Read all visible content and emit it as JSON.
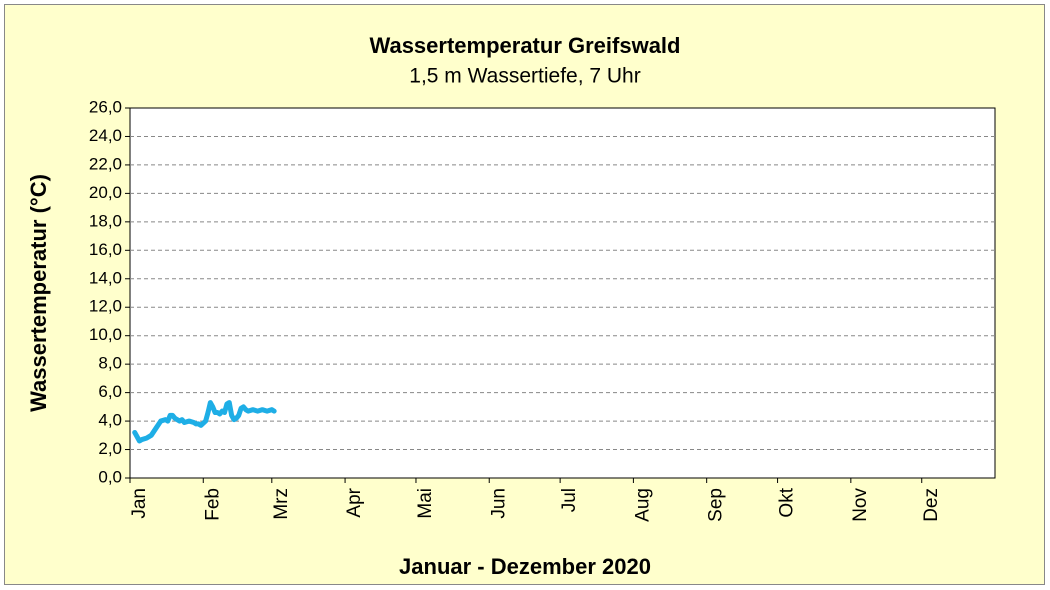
{
  "chart_data": {
    "type": "line",
    "title": "Wassertemperatur Greifswald",
    "subtitle": "1,5 m Wassertiefe, 7 Uhr",
    "ylabel": "Wassertemperatur (°C)",
    "xlabel": "Januar - Dezember 2020",
    "xlim": [
      0,
      366
    ],
    "xticks": [
      {
        "value": 0,
        "label": "Jan"
      },
      {
        "value": 31,
        "label": "Feb"
      },
      {
        "value": 60,
        "label": "Mrz"
      },
      {
        "value": 91,
        "label": "Apr"
      },
      {
        "value": 121,
        "label": "Mai"
      },
      {
        "value": 152,
        "label": "Jun"
      },
      {
        "value": 182,
        "label": "Jul"
      },
      {
        "value": 213,
        "label": "Aug"
      },
      {
        "value": 244,
        "label": "Sep"
      },
      {
        "value": 274,
        "label": "Okt"
      },
      {
        "value": 305,
        "label": "Nov"
      },
      {
        "value": 335,
        "label": "Dez"
      }
    ],
    "ylim": [
      0,
      26
    ],
    "yticks": [
      {
        "value": 0,
        "label": "0,0"
      },
      {
        "value": 2,
        "label": "2,0"
      },
      {
        "value": 4,
        "label": "4,0"
      },
      {
        "value": 6,
        "label": "6,0"
      },
      {
        "value": 8,
        "label": "8,0"
      },
      {
        "value": 10,
        "label": "10,0"
      },
      {
        "value": 12,
        "label": "12,0"
      },
      {
        "value": 14,
        "label": "14,0"
      },
      {
        "value": 16,
        "label": "16,0"
      },
      {
        "value": 18,
        "label": "18,0"
      },
      {
        "value": 20,
        "label": "20,0"
      },
      {
        "value": 22,
        "label": "22,0"
      },
      {
        "value": 24,
        "label": "24,0"
      },
      {
        "value": 26,
        "label": "26,0"
      }
    ],
    "grid": true,
    "series": [
      {
        "color": "#1eaee6",
        "x": [
          2,
          4,
          5,
          7,
          9,
          11,
          13,
          15,
          16,
          17,
          18,
          19,
          21,
          22,
          23,
          25,
          27,
          28,
          29,
          30,
          32,
          33,
          34,
          35,
          36,
          37,
          38,
          39,
          40,
          41,
          42,
          43,
          44,
          45,
          46,
          47,
          48,
          49,
          50,
          52,
          54,
          56,
          58,
          60,
          61
        ],
        "values": [
          3.2,
          2.6,
          2.7,
          2.8,
          3.0,
          3.5,
          4.0,
          4.1,
          4.0,
          4.4,
          4.4,
          4.2,
          4.0,
          4.1,
          3.9,
          4.0,
          3.9,
          3.8,
          3.8,
          3.7,
          4.0,
          4.6,
          5.3,
          5.0,
          4.6,
          4.6,
          4.5,
          4.7,
          4.6,
          5.2,
          5.3,
          4.4,
          4.1,
          4.2,
          4.4,
          4.9,
          5.0,
          4.8,
          4.7,
          4.8,
          4.7,
          4.8,
          4.7,
          4.8,
          4.7
        ]
      }
    ]
  }
}
